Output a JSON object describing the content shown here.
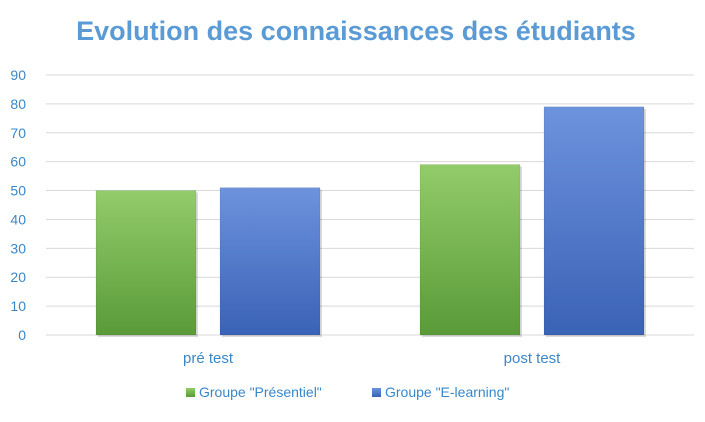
{
  "chart_data": {
    "type": "bar",
    "title": "Evolution des connaissances des étudiants",
    "categories": [
      "pré test",
      "post test"
    ],
    "series": [
      {
        "name": "Groupe \"Présentiel\"",
        "values": [
          50,
          59
        ],
        "color": "#70ad47"
      },
      {
        "name": "Groupe \"E-learning\"",
        "values": [
          51,
          79
        ],
        "color": "#4472c4"
      }
    ],
    "ylim": [
      0,
      90
    ],
    "yticks": [
      0,
      10,
      20,
      30,
      40,
      50,
      60,
      70,
      80,
      90
    ],
    "grid": true,
    "legend_position": "bottom"
  }
}
